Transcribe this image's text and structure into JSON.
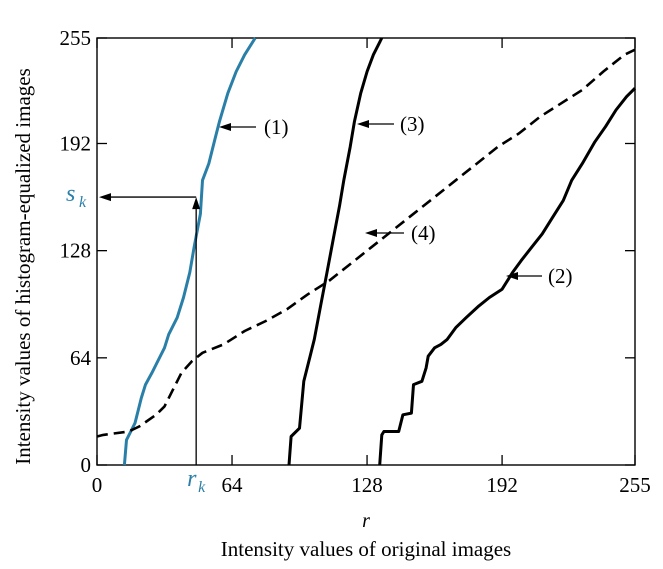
{
  "chart_data": {
    "type": "line",
    "xlabel_symbol": "r",
    "xlabel": "Intensity values of original images",
    "ylabel": "Intensity values of histogram-equalized images",
    "xlim": [
      0,
      255
    ],
    "ylim": [
      0,
      255
    ],
    "x_ticks": [
      0,
      64,
      128,
      192,
      255
    ],
    "x_tick_labels": [
      "0",
      "64",
      "128",
      "192",
      "255"
    ],
    "y_ticks": [
      0,
      64,
      128,
      192,
      255
    ],
    "y_tick_labels": [
      "0",
      "64",
      "128",
      "192",
      "255"
    ],
    "grid": false,
    "series": [
      {
        "name": "(1)",
        "color": "#2a7fa8",
        "style": "solid",
        "points": [
          [
            13,
            0
          ],
          [
            14,
            15
          ],
          [
            16,
            20
          ],
          [
            18,
            25
          ],
          [
            20,
            35
          ],
          [
            21,
            40
          ],
          [
            23,
            48
          ],
          [
            26,
            55
          ],
          [
            28,
            60
          ],
          [
            32,
            70
          ],
          [
            34,
            78
          ],
          [
            38,
            88
          ],
          [
            41,
            100
          ],
          [
            44,
            115
          ],
          [
            46,
            130
          ],
          [
            49,
            150
          ],
          [
            50,
            170
          ],
          [
            53,
            180
          ],
          [
            56,
            195
          ],
          [
            58,
            205
          ],
          [
            62,
            222
          ],
          [
            66,
            235
          ],
          [
            70,
            245
          ],
          [
            75,
            255
          ]
        ]
      },
      {
        "name": "(2)",
        "color": "#000000",
        "style": "solid",
        "points": [
          [
            134,
            0
          ],
          [
            135,
            18
          ],
          [
            136,
            20
          ],
          [
            143,
            20
          ],
          [
            145,
            30
          ],
          [
            149,
            31
          ],
          [
            150,
            48
          ],
          [
            154,
            50
          ],
          [
            156,
            58
          ],
          [
            157,
            65
          ],
          [
            160,
            70
          ],
          [
            163,
            72
          ],
          [
            166,
            75
          ],
          [
            170,
            82
          ],
          [
            175,
            88
          ],
          [
            181,
            95
          ],
          [
            186,
            100
          ],
          [
            192,
            105
          ],
          [
            197,
            115
          ],
          [
            201,
            122
          ],
          [
            206,
            130
          ],
          [
            211,
            138
          ],
          [
            216,
            148
          ],
          [
            221,
            158
          ],
          [
            225,
            170
          ],
          [
            230,
            180
          ],
          [
            236,
            193
          ],
          [
            241,
            202
          ],
          [
            246,
            212
          ],
          [
            251,
            220
          ],
          [
            255,
            225
          ]
        ]
      },
      {
        "name": "(3)",
        "color": "#000000",
        "style": "solid",
        "points": [
          [
            91,
            0
          ],
          [
            92,
            17
          ],
          [
            96,
            22
          ],
          [
            98,
            50
          ],
          [
            101,
            65
          ],
          [
            103,
            75
          ],
          [
            106,
            95
          ],
          [
            109,
            115
          ],
          [
            112,
            135
          ],
          [
            115,
            155
          ],
          [
            117,
            170
          ],
          [
            120,
            190
          ],
          [
            122,
            205
          ],
          [
            125,
            222
          ],
          [
            128,
            235
          ],
          [
            131,
            245
          ],
          [
            135,
            255
          ]
        ]
      },
      {
        "name": "(4)",
        "color": "#000000",
        "style": "dashed",
        "points": [
          [
            0,
            17
          ],
          [
            3,
            18
          ],
          [
            15,
            20
          ],
          [
            20,
            23
          ],
          [
            28,
            30
          ],
          [
            32,
            35
          ],
          [
            36,
            45
          ],
          [
            40,
            55
          ],
          [
            45,
            62
          ],
          [
            50,
            67
          ],
          [
            60,
            72
          ],
          [
            70,
            80
          ],
          [
            80,
            86
          ],
          [
            90,
            93
          ],
          [
            100,
            102
          ],
          [
            110,
            110
          ],
          [
            120,
            120
          ],
          [
            130,
            130
          ],
          [
            140,
            140
          ],
          [
            150,
            150
          ],
          [
            160,
            160
          ],
          [
            170,
            170
          ],
          [
            180,
            180
          ],
          [
            190,
            190
          ],
          [
            200,
            198
          ],
          [
            210,
            208
          ],
          [
            220,
            216
          ],
          [
            230,
            224
          ],
          [
            240,
            235
          ],
          [
            250,
            245
          ],
          [
            255,
            248
          ]
        ]
      }
    ],
    "series_labels": [
      "(1)",
      "(2)",
      "(3)",
      "(4)"
    ],
    "annotation": {
      "rk_symbol": "r",
      "rk_sub": "k",
      "sk_symbol": "s",
      "sk_sub": "k",
      "rk_value": 47,
      "sk_value": 160
    }
  }
}
